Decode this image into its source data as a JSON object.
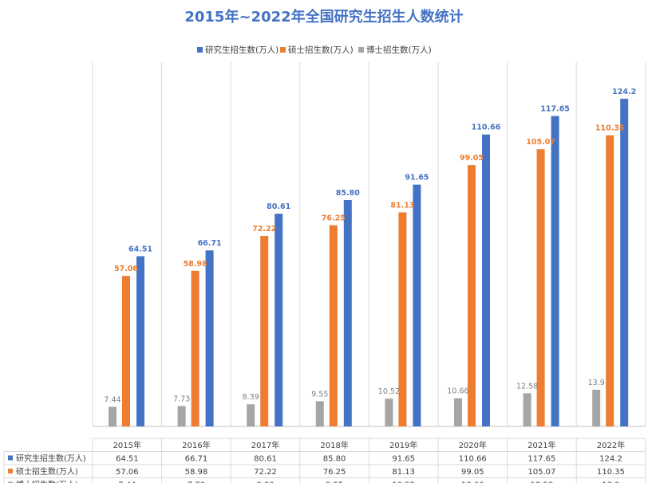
{
  "chart_data": {
    "type": "bar",
    "title": "2015年~2022年全国研究生招生人数统计",
    "categories": [
      "2015年",
      "2016年",
      "2017年",
      "2018年",
      "2019年",
      "2020年",
      "2021年",
      "2022年"
    ],
    "series": [
      {
        "name": "研究生招生数(万人)",
        "color": "#4472c4",
        "values": [
          64.51,
          66.71,
          80.61,
          85.8,
          91.65,
          110.66,
          117.65,
          124.2
        ],
        "labels": [
          "64.51",
          "66.71",
          "80.61",
          "85.80",
          "91.65",
          "110.66",
          "117.65",
          "124.2"
        ]
      },
      {
        "name": "硕士招生数(万人)",
        "color": "#ed7d31",
        "values": [
          57.06,
          58.98,
          72.22,
          76.25,
          81.13,
          99.05,
          105.07,
          110.35
        ],
        "labels": [
          "57.06",
          "58.98",
          "72.22",
          "76.25",
          "81.13",
          "99.05",
          "105.07",
          "110.35"
        ]
      },
      {
        "name": "博士招生数(万人)",
        "color": "#a5a5a5",
        "values": [
          7.44,
          7.73,
          8.39,
          9.55,
          10.52,
          10.66,
          12.58,
          13.9
        ],
        "labels": [
          "7.44",
          "7.73",
          "8.39",
          "9.55",
          "10.52",
          "10.66",
          "12.58",
          "13.9"
        ]
      }
    ],
    "legend_position": "top",
    "data_table": true,
    "ylim": [
      0,
      130
    ]
  }
}
